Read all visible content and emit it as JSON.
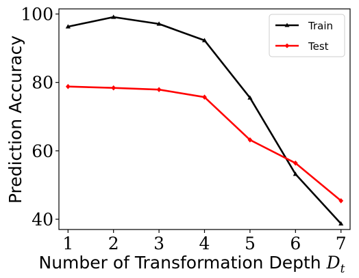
{
  "chart_data": {
    "type": "line",
    "x": [
      1,
      2,
      3,
      4,
      5,
      6,
      7
    ],
    "series": [
      {
        "name": "Train",
        "values": [
          96.3,
          99.1,
          97.1,
          92.3,
          75.5,
          53.2,
          38.7
        ],
        "color": "#000000",
        "marker": "triangle"
      },
      {
        "name": "Test",
        "values": [
          78.8,
          78.4,
          77.9,
          75.7,
          63.2,
          56.4,
          45.4
        ],
        "color": "#ff0000",
        "marker": "diamond"
      }
    ],
    "xlabel": "Number of Transformation Depth",
    "xlabel_symbol": "D",
    "xlabel_subscript": "t",
    "ylabel": "Prediction Accuracy",
    "xticks": [
      "1",
      "2",
      "3",
      "4",
      "5",
      "6",
      "7"
    ],
    "yticks": [
      "40",
      "60",
      "80",
      "100"
    ],
    "xlim": [
      0.8,
      7.2
    ],
    "ylim": [
      37,
      101.5
    ],
    "grid": false,
    "legend_position": "top-right"
  }
}
